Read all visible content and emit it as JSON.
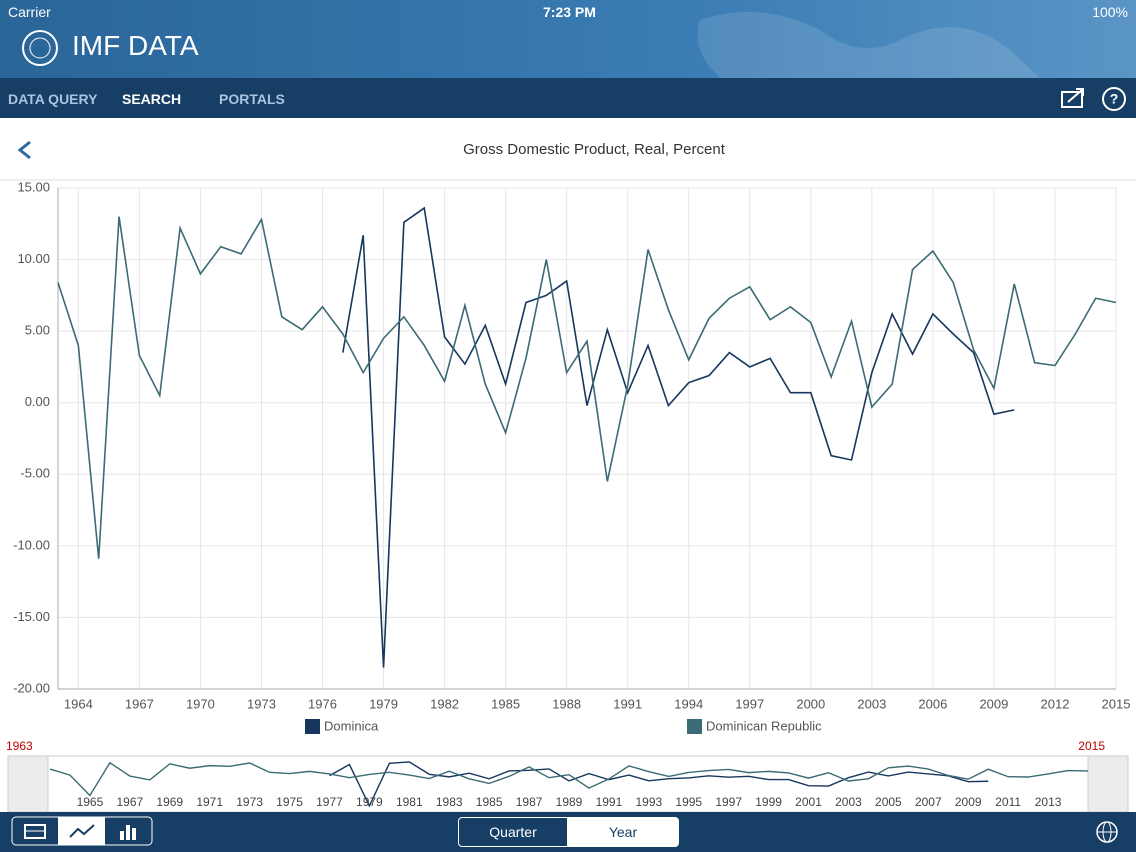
{
  "status_bar": {
    "carrier": "Carrier",
    "time": "7:23 PM",
    "battery": "100%"
  },
  "header": {
    "app_title": "IMF DATA"
  },
  "nav": {
    "tabs": [
      "DATA QUERY",
      "SEARCH",
      "PORTALS"
    ]
  },
  "chart_data": {
    "type": "line",
    "title": "Gross Domestic Product, Real, Percent",
    "x": [
      1963,
      1964,
      1965,
      1966,
      1967,
      1968,
      1969,
      1970,
      1971,
      1972,
      1973,
      1974,
      1975,
      1976,
      1977,
      1978,
      1979,
      1980,
      1981,
      1982,
      1983,
      1984,
      1985,
      1986,
      1987,
      1988,
      1989,
      1990,
      1991,
      1992,
      1993,
      1994,
      1995,
      1996,
      1997,
      1998,
      1999,
      2000,
      2001,
      2002,
      2003,
      2004,
      2005,
      2006,
      2007,
      2008,
      2009,
      2010,
      2011,
      2012,
      2013,
      2014,
      2015
    ],
    "series": [
      {
        "name": "Dominica",
        "color": "#17375e",
        "values": [
          null,
          null,
          null,
          null,
          null,
          null,
          null,
          null,
          null,
          null,
          null,
          null,
          null,
          null,
          3.5,
          11.7,
          -18.5,
          12.6,
          13.6,
          4.6,
          2.7,
          5.4,
          1.3,
          7.0,
          7.5,
          8.5,
          -0.2,
          5.1,
          0.7,
          4.0,
          -0.2,
          1.4,
          1.9,
          3.5,
          2.5,
          3.1,
          0.7,
          0.7,
          -3.7,
          -4.0,
          2.1,
          6.2,
          3.4,
          6.2,
          4.8,
          3.5,
          -0.8,
          -0.5,
          null,
          null,
          null,
          null,
          null
        ]
      },
      {
        "name": "Dominican Republic",
        "color": "#3b6b74",
        "values": [
          8.4,
          4.0,
          -10.9,
          13.0,
          3.3,
          0.5,
          12.2,
          9.0,
          10.9,
          10.4,
          12.8,
          6.0,
          5.1,
          6.7,
          4.8,
          2.1,
          4.5,
          6.0,
          4.0,
          1.5,
          6.8,
          1.3,
          -2.1,
          3.1,
          10.0,
          2.1,
          4.3,
          -5.5,
          1.2,
          10.7,
          6.5,
          3.0,
          5.9,
          7.3,
          8.1,
          5.8,
          6.7,
          5.6,
          1.8,
          5.7,
          -0.3,
          1.3,
          9.3,
          10.6,
          8.4,
          3.7,
          1.0,
          8.3,
          2.8,
          2.6,
          4.8,
          7.3,
          7.0
        ]
      }
    ],
    "xlim": [
      1963,
      2015
    ],
    "xticks": [
      1964,
      1967,
      1970,
      1973,
      1976,
      1979,
      1982,
      1985,
      1988,
      1991,
      1994,
      1997,
      2000,
      2003,
      2006,
      2009,
      2012,
      2015
    ],
    "ylim": [
      -20,
      15
    ],
    "yticks": [
      {
        "value": -20,
        "label": "-20.00"
      },
      {
        "value": -15,
        "label": "-15.00"
      },
      {
        "value": -10,
        "label": "-10.00"
      },
      {
        "value": -5,
        "label": "-5.00"
      },
      {
        "value": 0,
        "label": "0.00"
      },
      {
        "value": 5,
        "label": "5.00"
      },
      {
        "value": 10,
        "label": "10.00"
      },
      {
        "value": 15,
        "label": "15.00"
      }
    ],
    "grid": true,
    "legend": "bottom"
  },
  "navigator": {
    "range": [
      1963,
      2015
    ],
    "xticks": [
      1965,
      1967,
      1969,
      1971,
      1973,
      1975,
      1977,
      1979,
      1981,
      1983,
      1985,
      1987,
      1989,
      1991,
      1993,
      1995,
      1997,
      1999,
      2001,
      2003,
      2005,
      2007,
      2009,
      2011,
      2013
    ]
  },
  "toolbar": {
    "periods": [
      "Quarter",
      "Year"
    ]
  }
}
